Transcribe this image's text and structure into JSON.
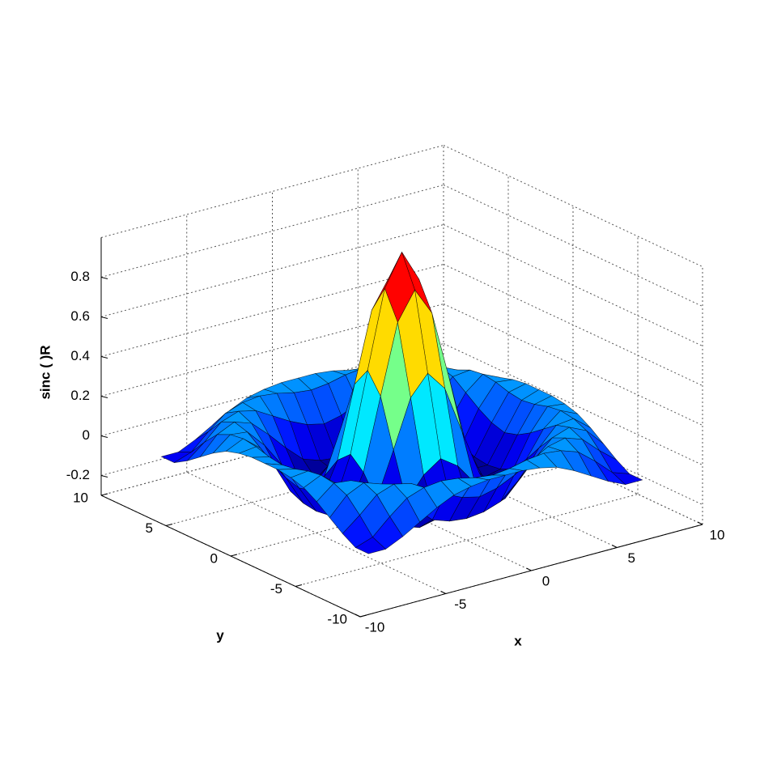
{
  "chart_data": {
    "type": "surface",
    "zlabel": "sinc ( )R",
    "xlabel": "x",
    "ylabel": "y",
    "xlim": [
      -10,
      10
    ],
    "ylim": [
      -10,
      10
    ],
    "zlim": [
      -0.3,
      1
    ],
    "xticks": [
      -10,
      -5,
      0,
      5,
      10
    ],
    "yticks": [
      -10,
      -5,
      0,
      5,
      10
    ],
    "zticks": [
      -0.2,
      0,
      0.2,
      0.4,
      0.6,
      0.8
    ],
    "grid": true,
    "colormap": "jet",
    "x": [
      -8,
      -7,
      -6,
      -5,
      -4,
      -3,
      -2,
      -1,
      0,
      1,
      2,
      3,
      4,
      5,
      6,
      7,
      8
    ],
    "y": [
      -8,
      -7,
      -6,
      -5,
      -4,
      -3,
      -2,
      -1,
      0,
      1,
      2,
      3,
      4,
      5,
      6,
      7,
      8
    ],
    "z": [
      [
        -0.09,
        -0.09,
        -0.05,
        0,
        0.05,
        0.09,
        0.11,
        0.12,
        0.12,
        0.12,
        0.11,
        0.09,
        0.05,
        0,
        -0.05,
        -0.09,
        -0.09
      ],
      [
        -0.09,
        -0.06,
        0.02,
        0.09,
        0.12,
        0.13,
        0.12,
        0.1,
        0.09,
        0.1,
        0.12,
        0.13,
        0.12,
        0.09,
        0.02,
        -0.06,
        -0.09
      ],
      [
        -0.05,
        0.02,
        0.1,
        0.13,
        0.11,
        0.06,
        0.01,
        -0.03,
        -0.05,
        -0.03,
        0.01,
        0.06,
        0.11,
        0.13,
        0.1,
        0.02,
        -0.05
      ],
      [
        0,
        0.09,
        0.13,
        0.1,
        0.02,
        -0.07,
        -0.15,
        -0.18,
        -0.19,
        -0.18,
        -0.15,
        -0.07,
        0.02,
        0.1,
        0.13,
        0.09,
        0
      ],
      [
        0.05,
        0.12,
        0.11,
        0.02,
        -0.1,
        -0.19,
        -0.22,
        -0.2,
        -0.19,
        -0.2,
        -0.22,
        -0.19,
        -0.1,
        0.02,
        0.11,
        0.12,
        0.05
      ],
      [
        0.09,
        0.13,
        0.06,
        -0.07,
        -0.19,
        -0.21,
        -0.12,
        -0.01,
        0.05,
        -0.01,
        -0.12,
        -0.21,
        -0.19,
        -0.07,
        0.06,
        0.13,
        0.09
      ],
      [
        0.11,
        0.12,
        0.01,
        -0.15,
        -0.22,
        -0.12,
        0.11,
        0.35,
        0.45,
        0.35,
        0.11,
        -0.12,
        -0.22,
        -0.15,
        0.01,
        0.12,
        0.11
      ],
      [
        0.12,
        0.1,
        -0.03,
        -0.18,
        -0.2,
        -0.01,
        0.35,
        0.7,
        0.84,
        0.7,
        0.35,
        -0.01,
        -0.2,
        -0.18,
        -0.03,
        0.1,
        0.12
      ],
      [
        0.12,
        0.09,
        -0.05,
        -0.19,
        -0.19,
        0.05,
        0.45,
        0.84,
        1,
        0.84,
        0.45,
        0.05,
        -0.19,
        -0.19,
        -0.05,
        0.09,
        0.12
      ],
      [
        0.12,
        0.1,
        -0.03,
        -0.18,
        -0.2,
        -0.01,
        0.35,
        0.7,
        0.84,
        0.7,
        0.35,
        -0.01,
        -0.2,
        -0.18,
        -0.03,
        0.1,
        0.12
      ],
      [
        0.11,
        0.12,
        0.01,
        -0.15,
        -0.22,
        -0.12,
        0.11,
        0.35,
        0.45,
        0.35,
        0.11,
        -0.12,
        -0.22,
        -0.15,
        0.01,
        0.12,
        0.11
      ],
      [
        0.09,
        0.13,
        0.06,
        -0.07,
        -0.19,
        -0.21,
        -0.12,
        -0.01,
        0.05,
        -0.01,
        -0.12,
        -0.21,
        -0.19,
        -0.07,
        0.06,
        0.13,
        0.09
      ],
      [
        0.05,
        0.12,
        0.11,
        0.02,
        -0.1,
        -0.19,
        -0.22,
        -0.2,
        -0.19,
        -0.2,
        -0.22,
        -0.19,
        -0.1,
        0.02,
        0.11,
        0.12,
        0.05
      ],
      [
        0,
        0.09,
        0.13,
        0.1,
        0.02,
        -0.07,
        -0.15,
        -0.18,
        -0.19,
        -0.18,
        -0.15,
        -0.07,
        0.02,
        0.1,
        0.13,
        0.09,
        0
      ],
      [
        -0.05,
        0.02,
        0.1,
        0.13,
        0.11,
        0.06,
        0.01,
        -0.03,
        -0.05,
        -0.03,
        0.01,
        0.06,
        0.11,
        0.13,
        0.1,
        0.02,
        -0.05
      ],
      [
        -0.09,
        -0.06,
        0.02,
        0.09,
        0.12,
        0.13,
        0.12,
        0.1,
        0.09,
        0.1,
        0.12,
        0.13,
        0.12,
        0.09,
        0.02,
        -0.06,
        -0.09
      ],
      [
        -0.09,
        -0.09,
        -0.05,
        0,
        0.05,
        0.09,
        0.11,
        0.12,
        0.12,
        0.12,
        0.11,
        0.09,
        0.05,
        0,
        -0.05,
        -0.09,
        -0.09
      ]
    ]
  }
}
